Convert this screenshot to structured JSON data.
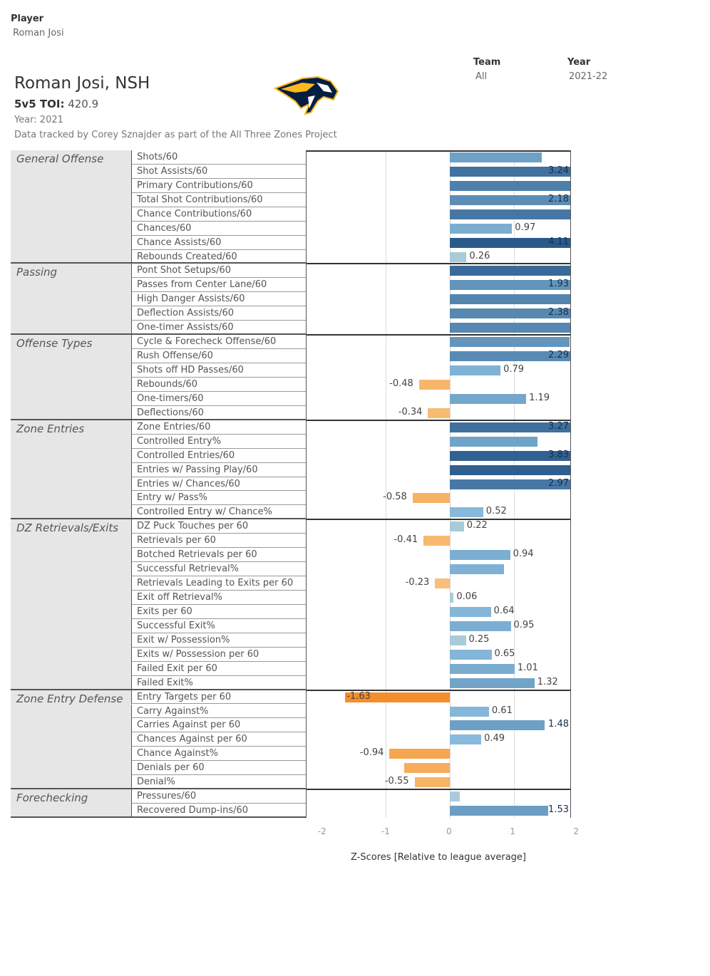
{
  "filters": {
    "player": {
      "label": "Player",
      "value": "Roman Josi"
    },
    "team": {
      "label": "Team",
      "value": "All"
    },
    "year": {
      "label": "Year",
      "value": "2021-22"
    }
  },
  "header": {
    "title": "Roman Josi, NSH",
    "toi_label": "5v5 TOI:",
    "toi_value": "420.9",
    "year_text": "Year: 2021",
    "credit": "Data tracked by Corey Sznajder as part of the All Three Zones Project",
    "logo": "Nashville Predators logo"
  },
  "colors": {
    "negative_strong": "#f28e2b",
    "negative_light": "#f9c07a",
    "positive_light": "#a9cbd9",
    "positive_strong": "#2a5a8c"
  },
  "chart_data": {
    "type": "bar",
    "orientation": "horizontal",
    "xlabel": "Z-Scores [Relative to league average]",
    "xlim": [
      -2.08,
      2.08
    ],
    "xticks": [
      "-2",
      "-1",
      "0",
      "1",
      "2"
    ],
    "grid": true,
    "groups": [
      {
        "name": "General Offense",
        "rows": [
          {
            "metric": "Shots/60",
            "value": 1.43,
            "label": null
          },
          {
            "metric": "Shot Assists/60",
            "value": 3.24,
            "label": "3.24"
          },
          {
            "metric": "Primary Contributions/60",
            "value": 2.7,
            "label": null
          },
          {
            "metric": "Total Shot Contributions/60",
            "value": 2.18,
            "label": "2.18"
          },
          {
            "metric": "Chance Contributions/60",
            "value": 3.0,
            "label": null
          },
          {
            "metric": "Chances/60",
            "value": 0.97,
            "label": "0.97"
          },
          {
            "metric": "Chance Assists/60",
            "value": 4.11,
            "label": "4.11"
          },
          {
            "metric": "Rebounds Created/60",
            "value": 0.26,
            "label": "0.26"
          }
        ]
      },
      {
        "name": "Passing",
        "rows": [
          {
            "metric": "Pont Shot Setups/60",
            "value": 3.5,
            "label": null
          },
          {
            "metric": "Passes from Center Lane/60",
            "value": 1.93,
            "label": "1.93"
          },
          {
            "metric": "High Danger Assists/60",
            "value": 2.5,
            "label": null
          },
          {
            "metric": "Deflection Assists/60",
            "value": 2.38,
            "label": "2.38"
          },
          {
            "metric": "One-timer Assists/60",
            "value": 2.4,
            "label": null
          }
        ]
      },
      {
        "name": "Offense Types",
        "rows": [
          {
            "metric": "Cycle & Forecheck Offense/60",
            "value": 1.87,
            "label": null
          },
          {
            "metric": "Rush Offense/60",
            "value": 2.29,
            "label": "2.29"
          },
          {
            "metric": "Shots off HD Passes/60",
            "value": 0.79,
            "label": "0.79"
          },
          {
            "metric": "Rebounds/60",
            "value": -0.48,
            "label": "-0.48"
          },
          {
            "metric": "One-timers/60",
            "value": 1.19,
            "label": "1.19"
          },
          {
            "metric": "Deflections/60",
            "value": -0.34,
            "label": "-0.34"
          }
        ]
      },
      {
        "name": "Zone Entries",
        "rows": [
          {
            "metric": "Zone Entries/60",
            "value": 3.27,
            "label": "3.27"
          },
          {
            "metric": "Controlled Entry%",
            "value": 1.37,
            "label": null
          },
          {
            "metric": "Controlled Entries/60",
            "value": 3.83,
            "label": "3.83"
          },
          {
            "metric": "Entries w/ Passing Play/60",
            "value": 3.9,
            "label": null
          },
          {
            "metric": "Entries w/ Chances/60",
            "value": 2.97,
            "label": "2.97"
          },
          {
            "metric": "Entry w/ Pass%",
            "value": -0.58,
            "label": "-0.58"
          },
          {
            "metric": "Controlled Entry w/ Chance%",
            "value": 0.52,
            "label": "0.52"
          }
        ]
      },
      {
        "name": "DZ Retrievals/Exits",
        "rows": [
          {
            "metric": "DZ Puck Touches per 60",
            "value": 0.22,
            "label": "0.22"
          },
          {
            "metric": "Retrievals per 60",
            "value": -0.41,
            "label": "-0.41"
          },
          {
            "metric": "Botched Retrievals per 60",
            "value": 0.94,
            "label": "0.94"
          },
          {
            "metric": "Successful Retrieval%",
            "value": 0.84,
            "label": null
          },
          {
            "metric": "Retrievals Leading to Exits per 60",
            "value": -0.23,
            "label": "-0.23"
          },
          {
            "metric": "Exit off Retrieval%",
            "value": 0.06,
            "label": "0.06"
          },
          {
            "metric": "Exits per 60",
            "value": 0.64,
            "label": "0.64"
          },
          {
            "metric": "Successful Exit%",
            "value": 0.95,
            "label": "0.95"
          },
          {
            "metric": "Exit w/ Possession%",
            "value": 0.25,
            "label": "0.25"
          },
          {
            "metric": "Exits w/ Possession per 60",
            "value": 0.65,
            "label": "0.65"
          },
          {
            "metric": "Failed Exit per 60",
            "value": 1.01,
            "label": "1.01"
          },
          {
            "metric": "Failed Exit%",
            "value": 1.32,
            "label": "1.32"
          }
        ]
      },
      {
        "name": "Zone Entry Defense",
        "rows": [
          {
            "metric": "Entry Targets per 60",
            "value": -1.63,
            "label": "-1.63"
          },
          {
            "metric": "Carry Against%",
            "value": 0.61,
            "label": "0.61"
          },
          {
            "metric": "Carries Against per 60",
            "value": 1.48,
            "label": "1.48"
          },
          {
            "metric": "Chances Against per 60",
            "value": 0.49,
            "label": "0.49"
          },
          {
            "metric": "Chance Against%",
            "value": -0.94,
            "label": "-0.94"
          },
          {
            "metric": "Denials per 60",
            "value": -0.71,
            "label": null
          },
          {
            "metric": "Denial%",
            "value": -0.55,
            "label": "-0.55"
          }
        ]
      },
      {
        "name": "Forechecking",
        "rows": [
          {
            "metric": "Pressures/60",
            "value": 0.15,
            "label": null
          },
          {
            "metric": "Recovered Dump-ins/60",
            "value": 1.53,
            "label": "1.53"
          }
        ]
      }
    ]
  }
}
